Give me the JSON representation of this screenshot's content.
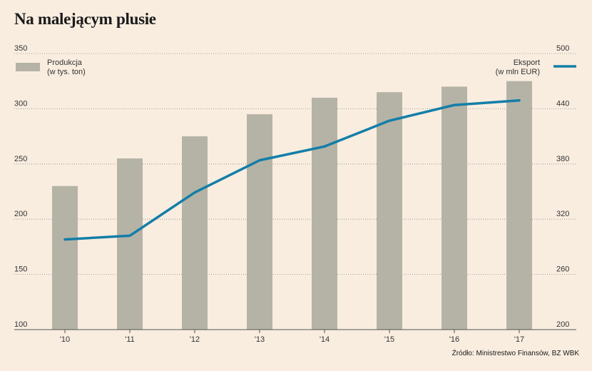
{
  "chart_data": {
    "type": "bar+line",
    "title": "Na malejącym plusie",
    "categories": [
      "'10",
      "'11",
      "'12",
      "'13",
      "'14",
      "'15",
      "'16",
      "'17"
    ],
    "series": [
      {
        "name": "Produkcja",
        "unit_label": "(w tys. ton)",
        "type": "bar",
        "axis": "left",
        "color": "#b5b3a6",
        "values": [
          230,
          255,
          275,
          295,
          310,
          315,
          320,
          325
        ]
      },
      {
        "name": "Eksport",
        "unit_label": "(w mln EUR)",
        "type": "line",
        "axis": "right",
        "color": "#137ea8",
        "values": [
          298,
          302,
          349,
          384,
          399,
          427,
          444,
          449
        ]
      }
    ],
    "y_left": {
      "min": 100,
      "max": 350,
      "ticks": [
        100,
        150,
        200,
        250,
        300,
        350
      ]
    },
    "y_right": {
      "min": 200,
      "max": 500,
      "ticks": [
        200,
        260,
        320,
        380,
        440,
        500
      ]
    },
    "grid": true,
    "legend": [
      "top-left",
      "top-right"
    ]
  },
  "source": "Źródło: Ministrestwo Finansów, BZ WBK"
}
